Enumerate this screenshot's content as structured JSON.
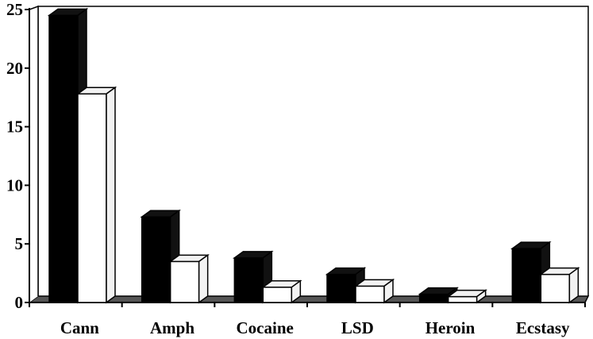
{
  "chart_data": {
    "type": "bar",
    "style": "3d-clustered",
    "categories": [
      "Cann",
      "Amph",
      "Cocaine",
      "LSD",
      "Heroin",
      "Ecstasy"
    ],
    "series": [
      {
        "values": [
          24.5,
          7.3,
          3.8,
          2.4,
          0.7,
          4.6
        ],
        "color": "#000000"
      },
      {
        "values": [
          17.8,
          3.5,
          1.3,
          1.4,
          0.5,
          2.4
        ],
        "color": "#ffffff"
      }
    ],
    "yticks": [
      "0",
      "5",
      "10",
      "15",
      "20",
      "25"
    ],
    "ylim": [
      0,
      25
    ],
    "title": "",
    "xlabel": "",
    "ylabel": "",
    "grid": false,
    "legend": "none"
  }
}
